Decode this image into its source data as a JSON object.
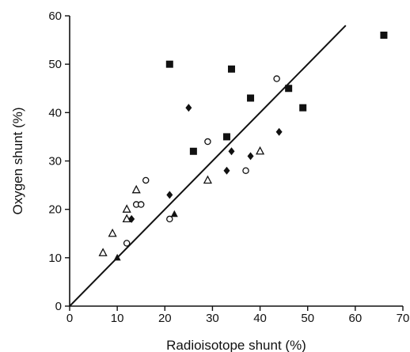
{
  "chart_data": {
    "type": "scatter",
    "title": "",
    "xlabel": "Radioisotope shunt (%)",
    "ylabel": "Oxygen shunt (%)",
    "xlim": [
      0,
      70
    ],
    "ylim": [
      0,
      60
    ],
    "xticks": [
      0,
      10,
      20,
      30,
      40,
      50,
      60,
      70
    ],
    "yticks": [
      0,
      10,
      20,
      30,
      40,
      50,
      60
    ],
    "grid": false,
    "legend": "none",
    "reference_line": {
      "type": "line_of_identity",
      "x": [
        0,
        58
      ],
      "y": [
        0,
        58
      ]
    },
    "series": [
      {
        "marker": "filled-square",
        "points": [
          {
            "x": 21,
            "y": 50
          },
          {
            "x": 34,
            "y": 49
          },
          {
            "x": 38,
            "y": 43
          },
          {
            "x": 46,
            "y": 45
          },
          {
            "x": 49,
            "y": 41
          },
          {
            "x": 33,
            "y": 35
          },
          {
            "x": 26,
            "y": 32
          },
          {
            "x": 66,
            "y": 56
          }
        ]
      },
      {
        "marker": "filled-diamond",
        "points": [
          {
            "x": 25,
            "y": 41
          },
          {
            "x": 44,
            "y": 36
          },
          {
            "x": 34,
            "y": 32
          },
          {
            "x": 38,
            "y": 31
          },
          {
            "x": 33,
            "y": 28
          },
          {
            "x": 21,
            "y": 23
          },
          {
            "x": 13,
            "y": 18
          }
        ]
      },
      {
        "marker": "filled-triangle",
        "points": [
          {
            "x": 22,
            "y": 19
          },
          {
            "x": 10,
            "y": 10
          }
        ]
      },
      {
        "marker": "open-circle",
        "points": [
          {
            "x": 43.5,
            "y": 47
          },
          {
            "x": 29,
            "y": 34
          },
          {
            "x": 37,
            "y": 28
          },
          {
            "x": 16,
            "y": 26
          },
          {
            "x": 14,
            "y": 21
          },
          {
            "x": 15,
            "y": 21
          },
          {
            "x": 21,
            "y": 18
          },
          {
            "x": 12,
            "y": 13
          }
        ]
      },
      {
        "marker": "open-triangle",
        "points": [
          {
            "x": 14,
            "y": 24
          },
          {
            "x": 12,
            "y": 20
          },
          {
            "x": 12,
            "y": 18
          },
          {
            "x": 9,
            "y": 15
          },
          {
            "x": 7,
            "y": 11
          },
          {
            "x": 29,
            "y": 26
          },
          {
            "x": 40,
            "y": 32
          }
        ]
      }
    ]
  }
}
